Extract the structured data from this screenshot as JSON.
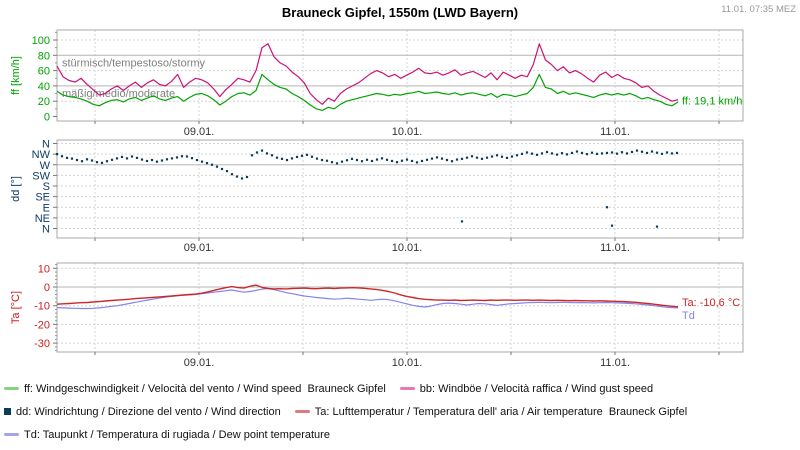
{
  "header": {
    "title": "Brauneck Gipfel, 1550m (LWD Bayern)",
    "timestamp": "11.01. 07:35 MEZ"
  },
  "x_axis": {
    "labels": [
      "09.01.",
      "10.01.",
      "11.01."
    ]
  },
  "colors": {
    "wind_speed": "#00a400",
    "wind_gust": "#cc1274",
    "wind_direction": "#0c3c5c",
    "air_temp": "#cc2828",
    "dew_point": "#8585ee",
    "grid_dashed": "#d4d4d4",
    "grid_solid": "#b5b5b5",
    "frame": "#a8a8a8",
    "annotation": "#808080"
  },
  "chart_data": [
    {
      "type": "line",
      "name": "wind-speed",
      "ylabel": "ff [km/h]",
      "axis_color": "#00a400",
      "ylim": [
        0,
        100
      ],
      "yticks": [
        {
          "v": 100,
          "label": "100"
        },
        {
          "v": 80,
          "label": "80"
        },
        {
          "v": 60,
          "label": "60"
        },
        {
          "v": 40,
          "label": "40"
        },
        {
          "v": 20,
          "label": "20"
        },
        {
          "v": 0,
          "label": "0"
        }
      ],
      "minor": {
        "from": 10,
        "to": 110,
        "step": 20
      },
      "grid": {
        "dashed": [
          100,
          60,
          20
        ],
        "solid": [
          80,
          40
        ]
      },
      "annotations": [
        {
          "text": "stürmisch/tempestoso/stormy",
          "v": 80
        },
        {
          "text": "mäßig/medio/moderate",
          "v": 40
        }
      ],
      "series": [
        {
          "name": "bb-wind-gust",
          "color": "#cc1274",
          "width": 1.2,
          "values": [
            66,
            52,
            47,
            45,
            50,
            42,
            35,
            28,
            30,
            36,
            40,
            34,
            40,
            45,
            38,
            44,
            48,
            42,
            40,
            46,
            55,
            38,
            45,
            50,
            48,
            44,
            36,
            26,
            35,
            42,
            50,
            48,
            45,
            60,
            90,
            95,
            78,
            70,
            66,
            58,
            52,
            44,
            30,
            22,
            16,
            24,
            20,
            30,
            36,
            40,
            44,
            50,
            56,
            60,
            57,
            52,
            55,
            50,
            54,
            58,
            63,
            57,
            56,
            58,
            54,
            57,
            61,
            54,
            57,
            59,
            55,
            51,
            57,
            48,
            58,
            54,
            50,
            54,
            52,
            68,
            95,
            74,
            68,
            60,
            65,
            57,
            60,
            56,
            50,
            45,
            54,
            58,
            51,
            55,
            50,
            48,
            44,
            38,
            40,
            33,
            28,
            24,
            20,
            22
          ]
        },
        {
          "name": "ff-wind-speed",
          "color": "#00a400",
          "width": 1.2,
          "values": [
            33,
            28,
            26,
            25,
            23,
            20,
            16,
            14,
            18,
            21,
            22,
            19,
            23,
            25,
            21,
            24,
            27,
            23,
            21,
            24,
            26,
            20,
            25,
            29,
            30,
            27,
            22,
            15,
            20,
            26,
            30,
            31,
            28,
            34,
            55,
            48,
            42,
            38,
            36,
            30,
            26,
            21,
            15,
            10,
            8,
            12,
            10,
            16,
            20,
            22,
            24,
            26,
            28,
            30,
            29,
            27,
            29,
            28,
            30,
            31,
            33,
            30,
            31,
            32,
            30,
            29,
            31,
            28,
            30,
            31,
            29,
            27,
            30,
            25,
            29,
            28,
            26,
            28,
            30,
            38,
            55,
            38,
            36,
            30,
            33,
            29,
            31,
            29,
            27,
            25,
            28,
            30,
            28,
            30,
            28,
            30,
            27,
            23,
            25,
            22,
            20,
            16,
            14,
            19
          ]
        }
      ],
      "end_labels": [
        {
          "text": "ff: 19,1 km/h",
          "color": "#00a400",
          "v": 21
        }
      ]
    },
    {
      "type": "scatter",
      "name": "wind-direction",
      "ylabel": "dd [°]",
      "axis_color": "#0d3d66",
      "ylim": [
        0,
        360
      ],
      "yticks": [
        {
          "v": 360,
          "label": "N"
        },
        {
          "v": 315,
          "label": "NW"
        },
        {
          "v": 270,
          "label": "W"
        },
        {
          "v": 225,
          "label": "SW"
        },
        {
          "v": 180,
          "label": "S"
        },
        {
          "v": 135,
          "label": "SE"
        },
        {
          "v": 90,
          "label": "E"
        },
        {
          "v": 45,
          "label": "NE"
        },
        {
          "v": 0,
          "label": "N"
        }
      ],
      "grid": {
        "dashed": [
          360,
          315,
          225,
          180,
          135,
          90,
          45,
          0
        ],
        "solid": [
          270
        ]
      },
      "series": [
        {
          "name": "dd-wind-direction",
          "color": "#0c3c5c",
          "values": [
            315,
            306,
            299,
            296,
            290,
            285,
            293,
            288,
            281,
            278,
            285,
            291,
            297,
            303,
            297,
            305,
            299,
            292,
            286,
            290,
            283,
            288,
            293,
            297,
            301,
            306,
            305,
            298,
            290,
            283,
            277,
            270,
            262,
            252,
            243,
            230,
            220,
            212,
            218,
            310,
            322,
            330,
            318,
            310,
            300,
            295,
            290,
            297,
            303,
            308,
            312,
            304,
            296,
            290,
            287,
            281,
            276,
            283,
            289,
            295,
            290,
            285,
            291,
            286,
            292,
            297,
            291,
            286,
            281,
            287,
            292,
            286,
            280,
            286,
            291,
            296,
            301,
            296,
            290,
            285,
            292,
            295,
            300,
            306,
            300,
            295,
            300,
            305,
            310,
            304,
            299,
            305,
            310,
            316,
            322,
            317,
            312,
            318,
            324,
            318,
            313,
            319,
            314,
            320,
            326,
            320,
            315,
            321,
            316,
            318,
            320,
            322,
            317,
            323,
            318,
            324,
            330,
            325,
            320,
            326,
            321,
            316,
            322,
            318,
            320
          ],
          "outliers": [
            [
              462,
              30
            ],
            [
              607,
              90
            ],
            [
              612,
              12
            ],
            [
              657,
              8
            ]
          ]
        }
      ]
    },
    {
      "type": "line",
      "name": "temperature",
      "ylabel": "Ta [°C]",
      "axis_color": "#cc2020",
      "ylim": [
        -35,
        13
      ],
      "yticks": [
        {
          "v": 10,
          "label": "10"
        },
        {
          "v": 0,
          "label": "0"
        },
        {
          "v": -10,
          "label": "-10"
        },
        {
          "v": -20,
          "label": "-20"
        },
        {
          "v": -30,
          "label": "-30"
        }
      ],
      "minor": {
        "from": -34,
        "to": 12,
        "step": 2
      },
      "grid": {
        "dashed": [
          10,
          -10,
          -20,
          -30
        ],
        "solid": [
          0
        ]
      },
      "series": [
        {
          "name": "td-dew-point",
          "color": "#8585ee",
          "width": 1.2,
          "values": [
            -11.0,
            -11.2,
            -11.3,
            -11.4,
            -11.5,
            -11.5,
            -11.4,
            -11.2,
            -10.8,
            -10.4,
            -10.0,
            -9.4,
            -8.8,
            -8.2,
            -7.6,
            -7.0,
            -6.4,
            -5.9,
            -5.4,
            -5.0,
            -4.7,
            -4.4,
            -4.2,
            -4.0,
            -3.6,
            -3.2,
            -2.8,
            -2.4,
            -2.0,
            -1.6,
            -2.2,
            -2.8,
            -2.4,
            -1.8,
            -1.2,
            -0.8,
            -1.4,
            -2.2,
            -3.0,
            -3.6,
            -4.2,
            -4.8,
            -5.2,
            -5.6,
            -5.9,
            -6.2,
            -6.5,
            -6.3,
            -6.0,
            -6.2,
            -6.5,
            -6.8,
            -7.1,
            -6.8,
            -6.5,
            -6.8,
            -7.4,
            -8.2,
            -9.0,
            -9.8,
            -10.4,
            -10.7,
            -10.2,
            -9.4,
            -8.8,
            -8.6,
            -8.8,
            -9.2,
            -9.6,
            -9.2,
            -8.8,
            -9.0,
            -9.4,
            -9.8,
            -9.4,
            -9.0,
            -8.8,
            -8.6,
            -8.4,
            -8.3,
            -8.2,
            -8.3,
            -8.4,
            -8.3,
            -8.2,
            -8.3,
            -8.4,
            -8.3,
            -8.4,
            -8.5,
            -8.4,
            -8.3,
            -8.4,
            -8.5,
            -8.6,
            -8.8,
            -9.0,
            -9.3,
            -9.6,
            -10.0,
            -10.4,
            -10.8,
            -11.0,
            -11.2
          ]
        },
        {
          "name": "ta-air-temperature",
          "color": "#cc2828",
          "width": 1.4,
          "values": [
            -9.2,
            -9.0,
            -8.8,
            -8.6,
            -8.4,
            -8.3,
            -8.0,
            -7.8,
            -7.5,
            -7.2,
            -7.0,
            -6.8,
            -6.5,
            -6.2,
            -6.0,
            -5.8,
            -5.5,
            -5.3,
            -5.0,
            -4.8,
            -4.5,
            -4.3,
            -4.0,
            -3.8,
            -3.3,
            -2.6,
            -1.8,
            -1.0,
            -0.4,
            0.2,
            -0.3,
            -0.6,
            0.4,
            1.0,
            -0.2,
            -0.8,
            -1.0,
            -0.9,
            -1.0,
            -0.8,
            -0.7,
            -0.6,
            -0.8,
            -0.9,
            -0.7,
            -0.6,
            -0.8,
            -0.6,
            -0.5,
            -0.4,
            -0.5,
            -0.7,
            -1.0,
            -1.3,
            -1.8,
            -2.4,
            -3.2,
            -4.2,
            -5.0,
            -5.6,
            -6.2,
            -6.6,
            -6.8,
            -7.0,
            -7.0,
            -7.1,
            -7.0,
            -7.2,
            -7.1,
            -7.0,
            -7.1,
            -7.2,
            -7.0,
            -7.1,
            -7.0,
            -7.0,
            -7.1,
            -7.0,
            -7.0,
            -7.1,
            -7.0,
            -7.1,
            -7.2,
            -7.1,
            -7.2,
            -7.3,
            -7.2,
            -7.3,
            -7.4,
            -7.5,
            -7.4,
            -7.5,
            -7.6,
            -7.7,
            -7.8,
            -8.0,
            -8.2,
            -8.5,
            -8.8,
            -9.2,
            -9.6,
            -10.0,
            -10.3,
            -10.6
          ]
        }
      ],
      "end_labels": [
        {
          "text": "Ta: -10,6 °C",
          "color": "#cc2828",
          "v": -8
        },
        {
          "text": "Td",
          "color": "#8585ee",
          "v": -15
        }
      ]
    }
  ],
  "legend": {
    "rows": [
      [
        {
          "marker": "dash",
          "color": "#86d386",
          "name": "wind-speed",
          "label": "ff: Windgeschwindigkeit / Velocità del vento / Wind speed  Brauneck Gipfel"
        },
        {
          "marker": "dash",
          "color": "#e678b4",
          "name": "wind-gust",
          "label": "bb: Windböe / Velocità raffica / Wind gust speed"
        }
      ],
      [
        {
          "marker": "square",
          "color": "#0c3c5c",
          "name": "wind-direction",
          "label": "dd: Windrichtung / Direzione del vento / Wind direction"
        },
        {
          "marker": "dash",
          "color": "#e07a7a",
          "name": "air-temperature",
          "label": "Ta: Lufttemperatur / Temperatura dell' aria / Air temperature  Brauneck Gipfel"
        }
      ],
      [
        {
          "marker": "dash",
          "color": "#a3a3f0",
          "name": "dew-point",
          "label": "Td: Taupunkt / Temperatura di rugiada / Dew point temperature"
        }
      ]
    ]
  }
}
